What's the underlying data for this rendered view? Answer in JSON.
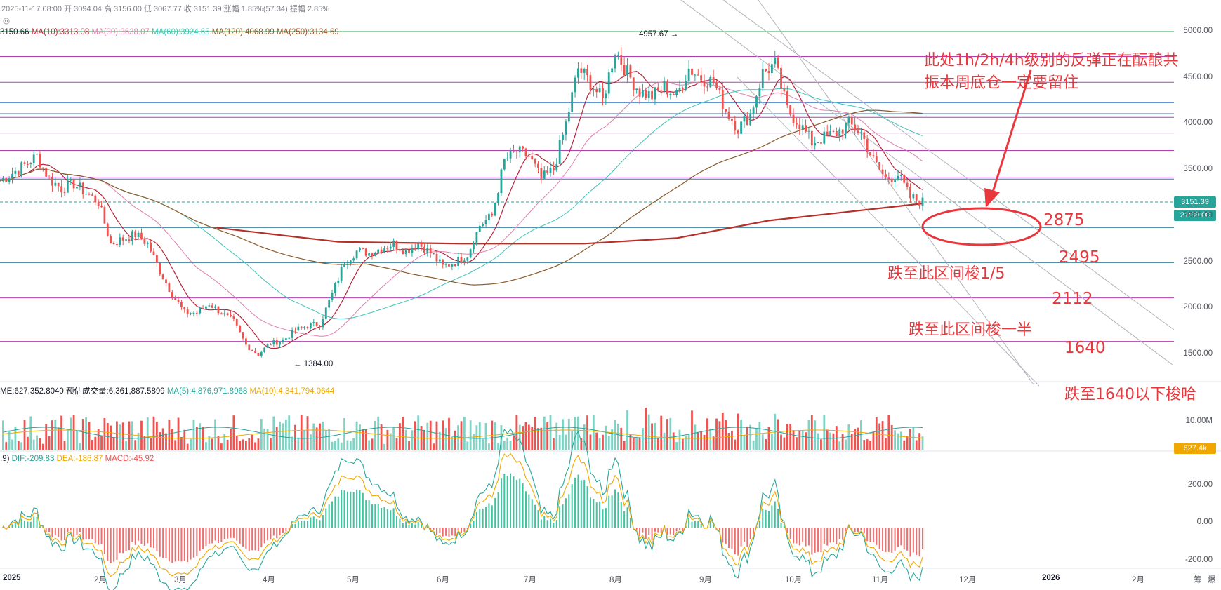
{
  "chart_data": [
    {
      "type": "candlestick",
      "title": "2025-11-17 08:00",
      "header": {
        "ohlc_line": [
          {
            "label": "开",
            "value": "3094.04"
          },
          {
            "label": "高",
            "value": "3156.00"
          },
          {
            "label": "低",
            "value": "3067.77"
          },
          {
            "label": "收",
            "value": "3151.39"
          },
          {
            "label": "涨幅",
            "value": "1.85%(57.34)"
          },
          {
            "label": "振幅",
            "value": "2.85%"
          }
        ],
        "ma_line": [
          {
            "label": "",
            "value": "3150.66",
            "color": "#131722"
          },
          {
            "label": "MA(10)",
            "value": "3313.08",
            "color": "#b5243a"
          },
          {
            "label": "MA(30)",
            "value": "3638.07",
            "color": "#e27fb0"
          },
          {
            "label": "MA(60)",
            "value": "3924.65",
            "color": "#3fc3b9"
          },
          {
            "label": "MA(120)",
            "value": "4068.99",
            "color": "#8b5a2b"
          },
          {
            "label": "MA(250)",
            "value": "3134.69",
            "color": "#a0522d"
          }
        ]
      },
      "x_ticks": [
        "2025",
        "2月",
        "3月",
        "4月",
        "5月",
        "6月",
        "7月",
        "8月",
        "9月",
        "10月",
        "11月",
        "12月",
        "2026",
        "2月"
      ],
      "y_ticks": [
        "5000.00",
        "4500.00",
        "4000.00",
        "3500.00",
        "3000.00",
        "2500.00",
        "2000.00",
        "1500.00"
      ],
      "ylim": [
        1400,
        5000
      ],
      "current_price": "3151.39",
      "countdown": "21:38:08",
      "high_marker": "4957.67",
      "low_marker": "1384.00",
      "price_path": [
        [
          0,
          3380
        ],
        [
          8,
          3550
        ],
        [
          12,
          3650
        ],
        [
          16,
          3400
        ],
        [
          20,
          3300
        ],
        [
          24,
          3350
        ],
        [
          28,
          3250
        ],
        [
          32,
          3150
        ],
        [
          36,
          2700
        ],
        [
          40,
          2750
        ],
        [
          44,
          2800
        ],
        [
          48,
          2700
        ],
        [
          52,
          2400
        ],
        [
          56,
          2150
        ],
        [
          60,
          1950
        ],
        [
          64,
          1950
        ],
        [
          68,
          2050
        ],
        [
          72,
          1950
        ],
        [
          76,
          1850
        ],
        [
          80,
          1600
        ],
        [
          84,
          1500
        ],
        [
          88,
          1620
        ],
        [
          92,
          1650
        ],
        [
          96,
          1760
        ],
        [
          100,
          1810
        ],
        [
          104,
          1830
        ],
        [
          108,
          2150
        ],
        [
          112,
          2500
        ],
        [
          116,
          2620
        ],
        [
          120,
          2600
        ],
        [
          124,
          2650
        ],
        [
          128,
          2700
        ],
        [
          132,
          2620
        ],
        [
          136,
          2700
        ],
        [
          140,
          2600
        ],
        [
          144,
          2450
        ],
        [
          148,
          2500
        ],
        [
          152,
          2580
        ],
        [
          156,
          2900
        ],
        [
          160,
          3000
        ],
        [
          164,
          3600
        ],
        [
          168,
          3700
        ],
        [
          172,
          3650
        ],
        [
          176,
          3400
        ],
        [
          180,
          3500
        ],
        [
          184,
          4000
        ],
        [
          188,
          4600
        ],
        [
          192,
          4450
        ],
        [
          196,
          4250
        ],
        [
          200,
          4800
        ],
        [
          204,
          4550
        ],
        [
          208,
          4350
        ],
        [
          212,
          4300
        ],
        [
          216,
          4400
        ],
        [
          220,
          4300
        ],
        [
          224,
          4600
        ],
        [
          228,
          4500
        ],
        [
          232,
          4450
        ],
        [
          236,
          4150
        ],
        [
          240,
          3950
        ],
        [
          244,
          4100
        ],
        [
          248,
          4550
        ],
        [
          252,
          4650
        ],
        [
          256,
          4150
        ],
        [
          260,
          4000
        ],
        [
          264,
          3800
        ],
        [
          268,
          3850
        ],
        [
          272,
          3900
        ],
        [
          276,
          4000
        ],
        [
          280,
          3900
        ],
        [
          284,
          3600
        ],
        [
          288,
          3400
        ],
        [
          292,
          3450
        ],
        [
          296,
          3200
        ],
        [
          300,
          3151
        ]
      ],
      "horizontal_levels": [
        {
          "value": 5000,
          "color": "#22b14c"
        },
        {
          "value": 4730,
          "color": "#b040b0"
        },
        {
          "value": 4450,
          "color": "#b040b0"
        },
        {
          "value": 4230,
          "color": "#3070c8"
        },
        {
          "value": 4110,
          "color": "#3070c8"
        },
        {
          "value": 4070,
          "color": "#b040b0"
        },
        {
          "value": 3900,
          "color": "#b040b0"
        },
        {
          "value": 3710,
          "color": "#b040b0"
        },
        {
          "value": 3420,
          "color": "#b040b0"
        },
        {
          "value": 3400,
          "color": "#3070c8"
        },
        {
          "value": 2875,
          "color": "#1a6e8e"
        },
        {
          "value": 2495,
          "color": "#1a6e8e"
        },
        {
          "value": 2112,
          "color": "#b040b0"
        },
        {
          "value": 1640,
          "color": "#b040b0"
        }
      ],
      "annotations": [
        "此处1h/2h/4h级别的反弹正在酝酿共",
        "振本周底仓一定要留住",
        "2875",
        "2495",
        "跌至此区间梭1/5",
        "2112",
        "跌至此区间梭一半",
        "1640",
        "跌至1640以下梭哈"
      ]
    },
    {
      "type": "bar",
      "title": "VOLUME",
      "header": [
        {
          "label": "VOLUME",
          "value": "627,352.8040",
          "color": "#131722"
        },
        {
          "label": "预估成交量",
          "value": "6,361,887.5899",
          "color": "#131722"
        },
        {
          "label": "MA(5)",
          "value": "4,876,971.8968",
          "color": "#26a69a"
        },
        {
          "label": "MA(10)",
          "value": "4,341,794.0644",
          "color": "#f0a800"
        }
      ],
      "y_ticks": [
        "10.00M"
      ],
      "current_tag": "627.4k"
    },
    {
      "type": "bar",
      "title": "MACD(12,26,9)",
      "header": [
        {
          "label": "DIF",
          "value": "-209.83",
          "color": "#26a69a"
        },
        {
          "label": "DEA",
          "value": "-186.87",
          "color": "#f0a800"
        },
        {
          "label": "MACD",
          "value": "-45.92",
          "color": "#ef5350"
        }
      ],
      "y_ticks": [
        "200.00",
        "0.00",
        "-200.00"
      ],
      "ylim": [
        -230,
        330
      ]
    }
  ],
  "corner": {
    "label1": "筹",
    "label2": "爆"
  }
}
